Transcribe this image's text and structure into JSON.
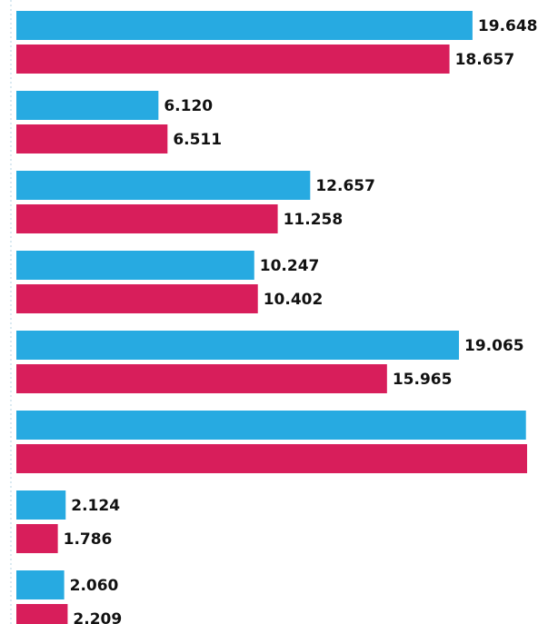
{
  "chart_data": {
    "type": "bar",
    "orientation": "horizontal",
    "xlim": [
      0,
      22000
    ],
    "series": [
      {
        "color": "#27aae1",
        "values": [
          19648,
          6120,
          12657,
          10247,
          19065,
          21950,
          2124,
          2060
        ],
        "value_labels": [
          "19.648",
          "6.120",
          "12.657",
          "10.247",
          "19.065",
          null,
          "2.124",
          "2.060"
        ]
      },
      {
        "color": "#d81e5b",
        "values": [
          18657,
          6511,
          11258,
          10402,
          15965,
          22000,
          1786,
          2209
        ],
        "value_labels": [
          "18.657",
          "6.511",
          "11.258",
          "10.402",
          "15.965",
          null,
          "1.786",
          "2.209"
        ]
      }
    ]
  }
}
